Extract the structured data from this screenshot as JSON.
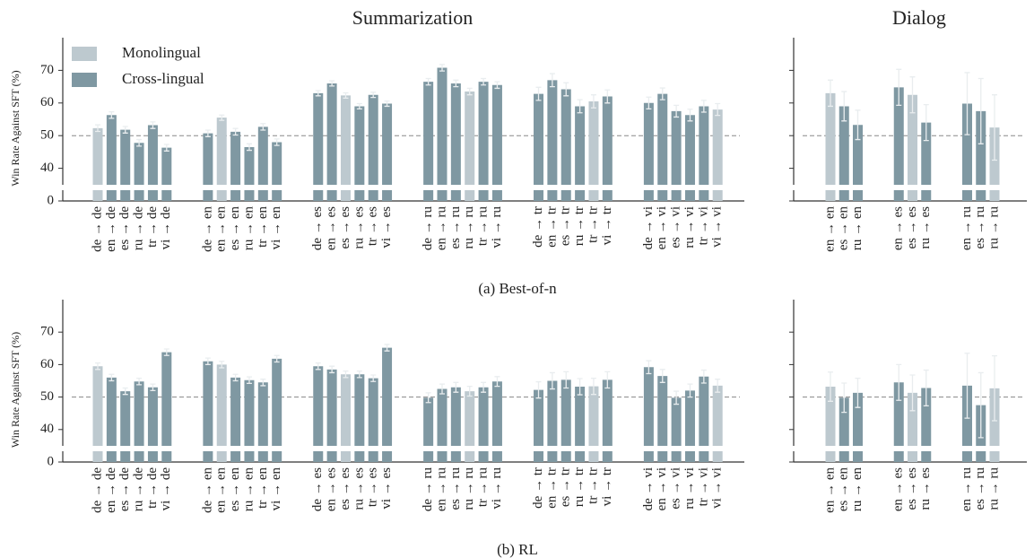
{
  "chart_data": [
    {
      "type": "bar",
      "title": "Summarization",
      "caption": "(a) Best-of-n",
      "ylabel": "Win Rate Against SFT (%)",
      "legend": "upper left",
      "categories": [
        "de → de",
        "en → de",
        "es → de",
        "ru → de",
        "tr → de",
        "vi → de",
        null,
        null,
        "de → en",
        "en → en",
        "es → en",
        "ru → en",
        "tr → en",
        "vi → en",
        null,
        null,
        "de → es",
        "en → es",
        "es → es",
        "ru → es",
        "tr → es",
        "vi → es",
        null,
        null,
        "de → ru",
        "en → ru",
        "es → ru",
        "ru → ru",
        "tr → ru",
        "vi → ru",
        null,
        null,
        "de → tr",
        "en → tr",
        "es → tr",
        "ru → tr",
        "tr → tr",
        "vi → tr",
        null,
        null,
        "de → vi",
        "en → vi",
        "es → vi",
        "ru → vi",
        "tr → vi",
        "vi → vi"
      ],
      "series": [
        {
          "name": "Monolingual",
          "color": "#bdc9cf",
          "values": [
            52.3,
            null,
            null,
            null,
            null,
            null,
            null,
            null,
            null,
            55.5,
            null,
            null,
            null,
            null,
            null,
            null,
            null,
            null,
            62.3,
            null,
            null,
            null,
            null,
            null,
            null,
            null,
            null,
            63.5,
            null,
            null,
            null,
            null,
            null,
            null,
            null,
            null,
            60.5,
            null,
            null,
            null,
            null,
            null,
            null,
            null,
            null,
            58
          ],
          "errors": [
            1,
            null,
            null,
            null,
            null,
            null,
            null,
            null,
            null,
            0.8,
            null,
            null,
            null,
            null,
            null,
            null,
            null,
            null,
            0.8,
            null,
            null,
            null,
            null,
            null,
            null,
            null,
            null,
            1,
            null,
            null,
            null,
            null,
            null,
            null,
            null,
            null,
            2,
            null,
            null,
            null,
            null,
            null,
            null,
            null,
            null,
            1.8
          ]
        },
        {
          "name": "Cross-lingual",
          "color": "#7f98a2",
          "values": [
            null,
            56.3,
            51.8,
            47.8,
            53.2,
            46.3,
            null,
            null,
            50.7,
            null,
            51.2,
            46.5,
            52.7,
            48,
            null,
            null,
            63,
            66,
            null,
            59,
            62.5,
            59.8,
            null,
            null,
            66.5,
            70.8,
            66,
            null,
            66.5,
            65.5,
            null,
            null,
            62.8,
            67,
            64.2,
            59,
            null,
            62,
            null,
            null,
            60,
            62.8,
            57.5,
            56.3,
            59,
            null
          ],
          "errors": [
            null,
            1,
            1,
            1,
            1,
            1,
            null,
            null,
            1,
            null,
            1,
            1,
            1,
            1,
            null,
            null,
            0.8,
            0.8,
            null,
            0.8,
            0.8,
            0.8,
            null,
            null,
            1,
            1,
            1,
            null,
            1,
            1,
            null,
            null,
            2,
            2,
            2,
            2,
            null,
            2,
            null,
            null,
            1.8,
            1.8,
            1.8,
            1.8,
            1.8,
            null
          ]
        }
      ],
      "ylim": [
        0,
        80
      ],
      "axis_break": [
        0,
        30
      ],
      "yticks": [
        0,
        40,
        50,
        60,
        70
      ],
      "hline": 50
    },
    {
      "type": "bar",
      "title": "Dialog",
      "categories": [
        "en → en",
        "es → en",
        "ru → en",
        null,
        null,
        "en → es",
        "es → es",
        "ru → es",
        null,
        null,
        "en → ru",
        "es → ru",
        "ru → ru"
      ],
      "series": [
        {
          "name": "Monolingual",
          "color": "#bdc9cf",
          "values": [
            63,
            null,
            null,
            null,
            null,
            null,
            62.5,
            null,
            null,
            null,
            null,
            null,
            52.5
          ],
          "errors": [
            4,
            null,
            null,
            null,
            null,
            null,
            5.5,
            null,
            null,
            null,
            null,
            null,
            10
          ]
        },
        {
          "name": "Cross-lingual",
          "color": "#7f98a2",
          "values": [
            null,
            59,
            53.3,
            null,
            null,
            64.8,
            null,
            54,
            null,
            null,
            59.8,
            57.5,
            null
          ],
          "errors": [
            null,
            4.5,
            4.5,
            null,
            null,
            5.5,
            null,
            5.5,
            null,
            null,
            9.5,
            10,
            null
          ]
        }
      ],
      "ylim": [
        0,
        80
      ],
      "axis_break": [
        0,
        30
      ],
      "yticks": [
        0,
        40,
        50,
        60,
        70
      ],
      "hline": 50
    },
    {
      "type": "bar",
      "caption": "(b) RL",
      "ylabel": "Win Rate Against SFT (%)",
      "categories": [
        "de → de",
        "en → de",
        "es → de",
        "ru → de",
        "tr → de",
        "vi → de",
        null,
        null,
        "de → en",
        "en → en",
        "es → en",
        "ru → en",
        "tr → en",
        "vi → en",
        null,
        null,
        "de → es",
        "en → es",
        "es → es",
        "ru → es",
        "tr → es",
        "vi → es",
        null,
        null,
        "de → ru",
        "en → ru",
        "es → ru",
        "ru → ru",
        "tr → ru",
        "vi → ru",
        null,
        null,
        "de → tr",
        "en → tr",
        "es → tr",
        "ru → tr",
        "tr → tr",
        "vi → tr",
        null,
        null,
        "de → vi",
        "en → vi",
        "es → vi",
        "ru → vi",
        "tr → vi",
        "vi → vi"
      ],
      "series": [
        {
          "name": "Monolingual",
          "color": "#bdc9cf",
          "values": [
            59.5,
            null,
            null,
            null,
            null,
            null,
            null,
            null,
            null,
            60,
            null,
            null,
            null,
            null,
            null,
            null,
            null,
            null,
            57,
            null,
            null,
            null,
            null,
            null,
            null,
            null,
            null,
            51.8,
            null,
            null,
            null,
            null,
            null,
            null,
            null,
            null,
            53.3,
            null,
            null,
            null,
            null,
            null,
            null,
            null,
            null,
            53.5
          ],
          "errors": [
            1,
            null,
            null,
            null,
            null,
            null,
            null,
            null,
            null,
            1,
            null,
            null,
            null,
            null,
            null,
            null,
            null,
            null,
            1,
            null,
            null,
            null,
            null,
            null,
            null,
            null,
            null,
            1.5,
            null,
            null,
            null,
            null,
            null,
            null,
            null,
            null,
            2.5,
            null,
            null,
            null,
            null,
            null,
            null,
            null,
            null,
            2
          ]
        },
        {
          "name": "Cross-lingual",
          "color": "#7f98a2",
          "values": [
            null,
            56,
            51.8,
            54.8,
            53,
            63.8,
            null,
            null,
            61,
            null,
            56,
            55.2,
            54.5,
            61.8,
            null,
            null,
            59.5,
            58.5,
            null,
            57,
            55.8,
            65.2,
            null,
            null,
            49.8,
            52.5,
            53,
            null,
            53,
            54.8,
            null,
            null,
            52.2,
            55,
            55.3,
            53.2,
            null,
            55.3,
            null,
            null,
            59.2,
            56.5,
            49.8,
            52,
            56.3,
            null
          ],
          "errors": [
            null,
            1,
            1,
            1,
            1,
            1,
            null,
            null,
            1,
            null,
            1,
            1,
            1,
            1,
            null,
            null,
            1,
            1,
            null,
            1,
            1,
            1,
            null,
            null,
            1.5,
            1.5,
            1.5,
            null,
            1.5,
            1.5,
            null,
            null,
            2.5,
            2.5,
            2.5,
            2.5,
            null,
            2.5,
            null,
            null,
            2,
            2,
            2,
            2,
            2,
            null
          ]
        }
      ],
      "ylim": [
        0,
        80
      ],
      "axis_break": [
        0,
        30
      ],
      "yticks": [
        0,
        40,
        50,
        60,
        70
      ],
      "hline": 50
    },
    {
      "type": "bar",
      "categories": [
        "en → en",
        "es → en",
        "ru → en",
        null,
        null,
        "en → es",
        "es → es",
        "ru → es",
        null,
        null,
        "en → ru",
        "es → ru",
        "ru → ru"
      ],
      "series": [
        {
          "name": "Monolingual",
          "color": "#bdc9cf",
          "values": [
            53.2,
            null,
            null,
            null,
            null,
            null,
            51.3,
            null,
            null,
            null,
            null,
            null,
            52.7
          ],
          "errors": [
            4.5,
            null,
            null,
            null,
            null,
            null,
            5.5,
            null,
            null,
            null,
            null,
            null,
            10
          ]
        },
        {
          "name": "Cross-lingual",
          "color": "#7f98a2",
          "values": [
            null,
            49.8,
            51.3,
            null,
            null,
            54.5,
            null,
            52.8,
            null,
            null,
            53.5,
            47.5,
            null
          ],
          "errors": [
            null,
            4.5,
            4.5,
            null,
            null,
            5.5,
            null,
            5.5,
            null,
            null,
            10,
            10,
            null
          ]
        }
      ],
      "ylim": [
        0,
        80
      ],
      "axis_break": [
        0,
        30
      ],
      "yticks": [
        0,
        40,
        50,
        60,
        70
      ],
      "hline": 50
    }
  ]
}
